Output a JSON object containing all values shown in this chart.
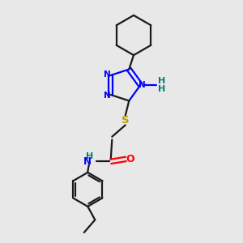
{
  "bg_color": "#e8e8e8",
  "bond_color": "#1a1a1a",
  "n_color": "#0000ff",
  "s_color": "#b8a000",
  "o_color": "#ff0000",
  "h_color": "#008080",
  "line_width": 1.6,
  "figsize": [
    3.0,
    3.0
  ],
  "dpi": 100,
  "xlim": [
    0,
    10
  ],
  "ylim": [
    0,
    10
  ]
}
